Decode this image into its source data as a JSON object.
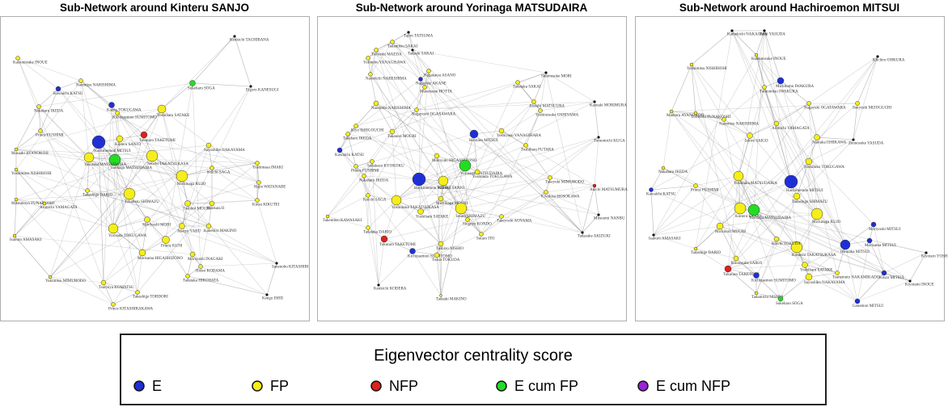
{
  "panels": [
    {
      "title": "Sub-Network around Kinteru SANJO",
      "nodes": [
        {
          "label": "Kenkichi TACHIBANA"
        },
        {
          "label": "Katsunosuke INOUE",
          "group": 1
        },
        {
          "label": "Naomitsu NARISHIMA",
          "group": 1
        },
        {
          "label": "Sukeharu SOGA",
          "group": 3
        },
        {
          "label": "Eigoro KANESUGI"
        },
        {
          "label": "Kawaichi KATSU",
          "group": 0
        },
        {
          "label": "Kazuo TOKUGAWA",
          "group": 0
        },
        {
          "label": "Kichizaemon SUMITOMO",
          "group": 1
        },
        {
          "label": "Yoshiharu SATAKE",
          "group": 1
        },
        {
          "label": "Nakaharu IKEDA",
          "group": 1
        },
        {
          "label": "Prince FUSHIMI",
          "group": 1
        },
        {
          "label": "Tokutaro TAKETOMI",
          "group": 2
        },
        {
          "label": "Kinteru SANJO",
          "group": 1
        },
        {
          "label": "Hachiroemon MITSUI",
          "group": 0
        },
        {
          "label": "Seiichi TAKATSUKASA",
          "group": 1
        },
        {
          "label": "Yorinaga MATSUDAIRA",
          "group": 3
        },
        {
          "label": "Sayoshiko NAKAYAMA",
          "group": 1
        },
        {
          "label": "Masaaki AYANOKOJI",
          "group": 1
        },
        {
          "label": "Yoshimitsu NISHIHOHI",
          "group": 1
        },
        {
          "label": "Yoshimasa IMAKI",
          "group": 1
        },
        {
          "label": "Koichi SAGA",
          "group": 1
        },
        {
          "label": "Yasutaka MATSUDAIRA",
          "group": 1
        },
        {
          "label": "Tadashige DARIO",
          "group": 1
        },
        {
          "label": "Michinaga KUJO",
          "group": 1
        },
        {
          "label": "Tokaharu SHIMAZU",
          "group": 1
        },
        {
          "label": "Hajio WATANABE",
          "group": 1
        },
        {
          "label": "Kinsu KIKUTEI",
          "group": 1
        },
        {
          "label": "Mitsumoyo FUNAKOSHI",
          "group": 1
        },
        {
          "label": "Arimichi YAMAGATA",
          "group": 1
        },
        {
          "label": "Toshimi MOURI",
          "group": 1
        },
        {
          "label": "Naokata II",
          "group": 1
        },
        {
          "label": "Kanehiro MAKINO",
          "group": 1
        },
        {
          "label": "Yorisada TOKUGAWA",
          "group": 1
        },
        {
          "label": "Moriyoshi MORI",
          "group": 1
        },
        {
          "label": "Atsuyo YABU",
          "group": 1
        },
        {
          "label": "Isaburo AMASAKI",
          "group": 1
        },
        {
          "label": "Prince KUNI",
          "group": 1
        },
        {
          "label": "Morisama HIGASHIZONO",
          "group": 1
        },
        {
          "label": "Moriyoshi INAGAKI",
          "group": 1
        },
        {
          "label": "Hideo KODAMA",
          "group": 1
        },
        {
          "label": "Tadataka HIROHATA",
          "group": 1
        },
        {
          "label": "Sanenobu KITASHIRI"
        },
        {
          "label": "Yukimitsu MIMURODO",
          "group": 1
        },
        {
          "label": "Tsuchiya KOMATSU",
          "group": 1
        },
        {
          "label": "Takashige TOHDORI",
          "group": 1
        },
        {
          "label": "Prince KITASHIRAKAWA",
          "group": 1
        },
        {
          "label": "Kengo ISHII"
        }
      ]
    },
    {
      "title": "Sub-Network around Yorinaga MATSUDAIRA",
      "nodes": [
        {
          "label": "Tadamitsu SAKAI",
          "group": 1
        },
        {
          "label": "Tsuyoshi MAEDA",
          "group": 1
        },
        {
          "label": "Yorinobu YANAGISAWA",
          "group": 1
        },
        {
          "label": "Tajiro TATSUMA"
        },
        {
          "label": "Tadashi SAKAI"
        },
        {
          "label": "Nagakatsu ASANO",
          "group": 1
        },
        {
          "label": "Nagayuki AKANE",
          "group": 0
        },
        {
          "label": "Munetsune HOTTA",
          "group": 1
        },
        {
          "label": "Tadataka SAKAI",
          "group": 1
        },
        {
          "label": "Shinnosuke MORI"
        },
        {
          "label": "Naomichi NABESHIMA",
          "group": 1
        },
        {
          "label": "Naomitsu NARISHIMA",
          "group": 1
        },
        {
          "label": "Nagayoshi OGASAWARA",
          "group": 1
        },
        {
          "label": "Kiyo ISHIGOUCHI",
          "group": 1
        },
        {
          "label": "Takaharu IKEDA",
          "group": 1
        },
        {
          "label": "Takanori MOURI",
          "group": 1
        },
        {
          "label": "Atsushi MATSUURA",
          "group": 1
        },
        {
          "label": "Yoshinosuke OSHIYAMA",
          "group": 1
        },
        {
          "label": "Kazuaki MORIMURA"
        },
        {
          "label": "Yoshiyasu YANAGIHARA",
          "group": 1
        },
        {
          "label": "Hirotaro MITSUI",
          "group": 0
        },
        {
          "label": "Toshiharu FUTARA",
          "group": 1
        },
        {
          "label": "Tomomichi KUGA"
        },
        {
          "label": "Kawaichi KATSU",
          "group": 0
        },
        {
          "label": "Sadakazu KYOKOKU",
          "group": 1
        },
        {
          "label": "Prince FUSHIMI",
          "group": 1
        },
        {
          "label": "Nakaharu IKEDA",
          "group": 1
        },
        {
          "label": "Motoyuki HIGASHIZONO",
          "group": 1
        },
        {
          "label": "Yorinaga MATSUDAIRA",
          "group": 3
        },
        {
          "label": "Hachiroemon MITSUI",
          "group": 0
        },
        {
          "label": "Yoshitada TOKUGAWA",
          "group": 1
        },
        {
          "label": "Kinteru SANJO",
          "group": 1
        },
        {
          "label": "Takeyuki MIMURODO",
          "group": 1
        },
        {
          "label": "Kiyohisa HOSOKAWA",
          "group": 1
        },
        {
          "label": "Akichi MATSUMURA",
          "group": 2
        },
        {
          "label": "Koichi SAGA",
          "group": 1
        },
        {
          "label": "Yoshimasa TAKATSUKASA",
          "group": 1
        },
        {
          "label": "Michinaga MOURI",
          "group": 1
        },
        {
          "label": "Yoshiharu SATAKE",
          "group": 1
        },
        {
          "label": "Iesato SHIMAZU",
          "group": 1
        },
        {
          "label": "Shigeyo KONDO",
          "group": 1
        },
        {
          "label": "Takeyoshi AOYAMA",
          "group": 1
        },
        {
          "label": "Takemitsu KAWASAKI",
          "group": 1
        },
        {
          "label": "Tadataka DARIO",
          "group": 1
        },
        {
          "label": "Mitsuomi NANBU"
        },
        {
          "label": "Tokutaro TAKETOMI",
          "group": 2
        },
        {
          "label": "Sotaro ITO",
          "group": 1
        },
        {
          "label": "Toshizo NISHIO",
          "group": 1
        },
        {
          "label": "Tadasuke AKIZUKI"
        },
        {
          "label": "Kichizaemon SUMITOMO",
          "group": 0
        },
        {
          "label": "Tosuo TOKUDA",
          "group": 1
        },
        {
          "label": "Kenkichi KODERA"
        },
        {
          "label": "Tadaaki MAKINO",
          "group": 1
        }
      ]
    },
    {
      "title": "Sub-Network around Hachiroemon MITSUI",
      "nodes": [
        {
          "label": "Kamekichi NAKAJIMA"
        },
        {
          "label": "Zenji YASUDA"
        },
        {
          "label": "Kiichiro OHKURA"
        },
        {
          "label": "Katsunosuke INOUE",
          "group": 1
        },
        {
          "label": "Yoshimitsu NISHIHOHI",
          "group": 1
        },
        {
          "label": "Michitomo IWAKURA",
          "group": 0
        },
        {
          "label": "Tomomitsu IWAKURA",
          "group": 1
        },
        {
          "label": "Nagayuki OGATAWARA",
          "group": 1
        },
        {
          "label": "Sueyoshi MIZOGUCHI",
          "group": 1
        },
        {
          "label": "Mamoru AYANOKOJI",
          "group": 1
        },
        {
          "label": "Yorimoto FUNAKOSHI",
          "group": 1
        },
        {
          "label": "Naomitsu NARISHIMA",
          "group": 1
        },
        {
          "label": "Arimichi YAMAGATA",
          "group": 1
        },
        {
          "label": "Iehiro SAIGO",
          "group": 1
        },
        {
          "label": "Naotaka ISHIKAWA",
          "group": 1
        },
        {
          "label": "Zennosuke YASUDA"
        },
        {
          "label": "Yoshihiko TOKUGAWA",
          "group": 1
        },
        {
          "label": "Nakaharu IKEDA",
          "group": 1
        },
        {
          "label": "Prince FUSHIMI",
          "group": 1
        },
        {
          "label": "Yoshitaka MATSUDAIRA",
          "group": 1
        },
        {
          "label": "Hachiroemon MITSUI",
          "group": 0
        },
        {
          "label": "Tadashige SHIMAZU",
          "group": 1
        },
        {
          "label": "Kinteru SANJO",
          "group": 1
        },
        {
          "label": "Yorinaga MATSUDAIRA",
          "group": 3
        },
        {
          "label": "Kawaichi KATSU",
          "group": 0
        },
        {
          "label": "Michinaga KUJO",
          "group": 1
        },
        {
          "label": "Michinori MOURI",
          "group": 1
        },
        {
          "label": "Isaburo AMASAKI"
        },
        {
          "label": "Moriyoshi MITSUI",
          "group": 0
        },
        {
          "label": "Morisama MITSUI",
          "group": 0
        },
        {
          "label": "Hirotaka MITSUI",
          "group": 0
        },
        {
          "label": "Tadashige DARIO",
          "group": 1
        },
        {
          "label": "Kintoshi TAKATSUKASA",
          "group": 1
        },
        {
          "label": "Koichi TOKUDA",
          "group": 1
        },
        {
          "label": "Kinnosuke SAIKO",
          "group": 1
        },
        {
          "label": "Tokutaro TAKETOMI",
          "group": 2
        },
        {
          "label": "Yoshiharu SATAKE",
          "group": 1
        },
        {
          "label": "Tsunemoto NAKAMIKADO",
          "group": 1
        },
        {
          "label": "Sayoshiko NAKAYAMA",
          "group": 1
        },
        {
          "label": "Kichizaemon SUMITOMO",
          "group": 0
        },
        {
          "label": "Kiyotaro YOSHIDA"
        },
        {
          "label": "Kinzo MITSUI",
          "group": 0
        },
        {
          "label": "Kiyotami INOUE"
        },
        {
          "label": "Tadamichi NISHIO",
          "group": 1
        },
        {
          "label": "Sukeharu SOGA",
          "group": 3
        },
        {
          "label": "Genemon MITSUI",
          "group": 0
        }
      ]
    }
  ],
  "legend": {
    "title": "Eigenvector centrality score",
    "items": [
      {
        "label": "E",
        "color": "#1f2fd6"
      },
      {
        "label": "FP",
        "color": "#f5ee1a"
      },
      {
        "label": "NFP",
        "color": "#e0201c"
      },
      {
        "label": "E cum FP",
        "color": "#22dd22"
      },
      {
        "label": "E cum NFP",
        "color": "#9a22d8"
      }
    ]
  }
}
